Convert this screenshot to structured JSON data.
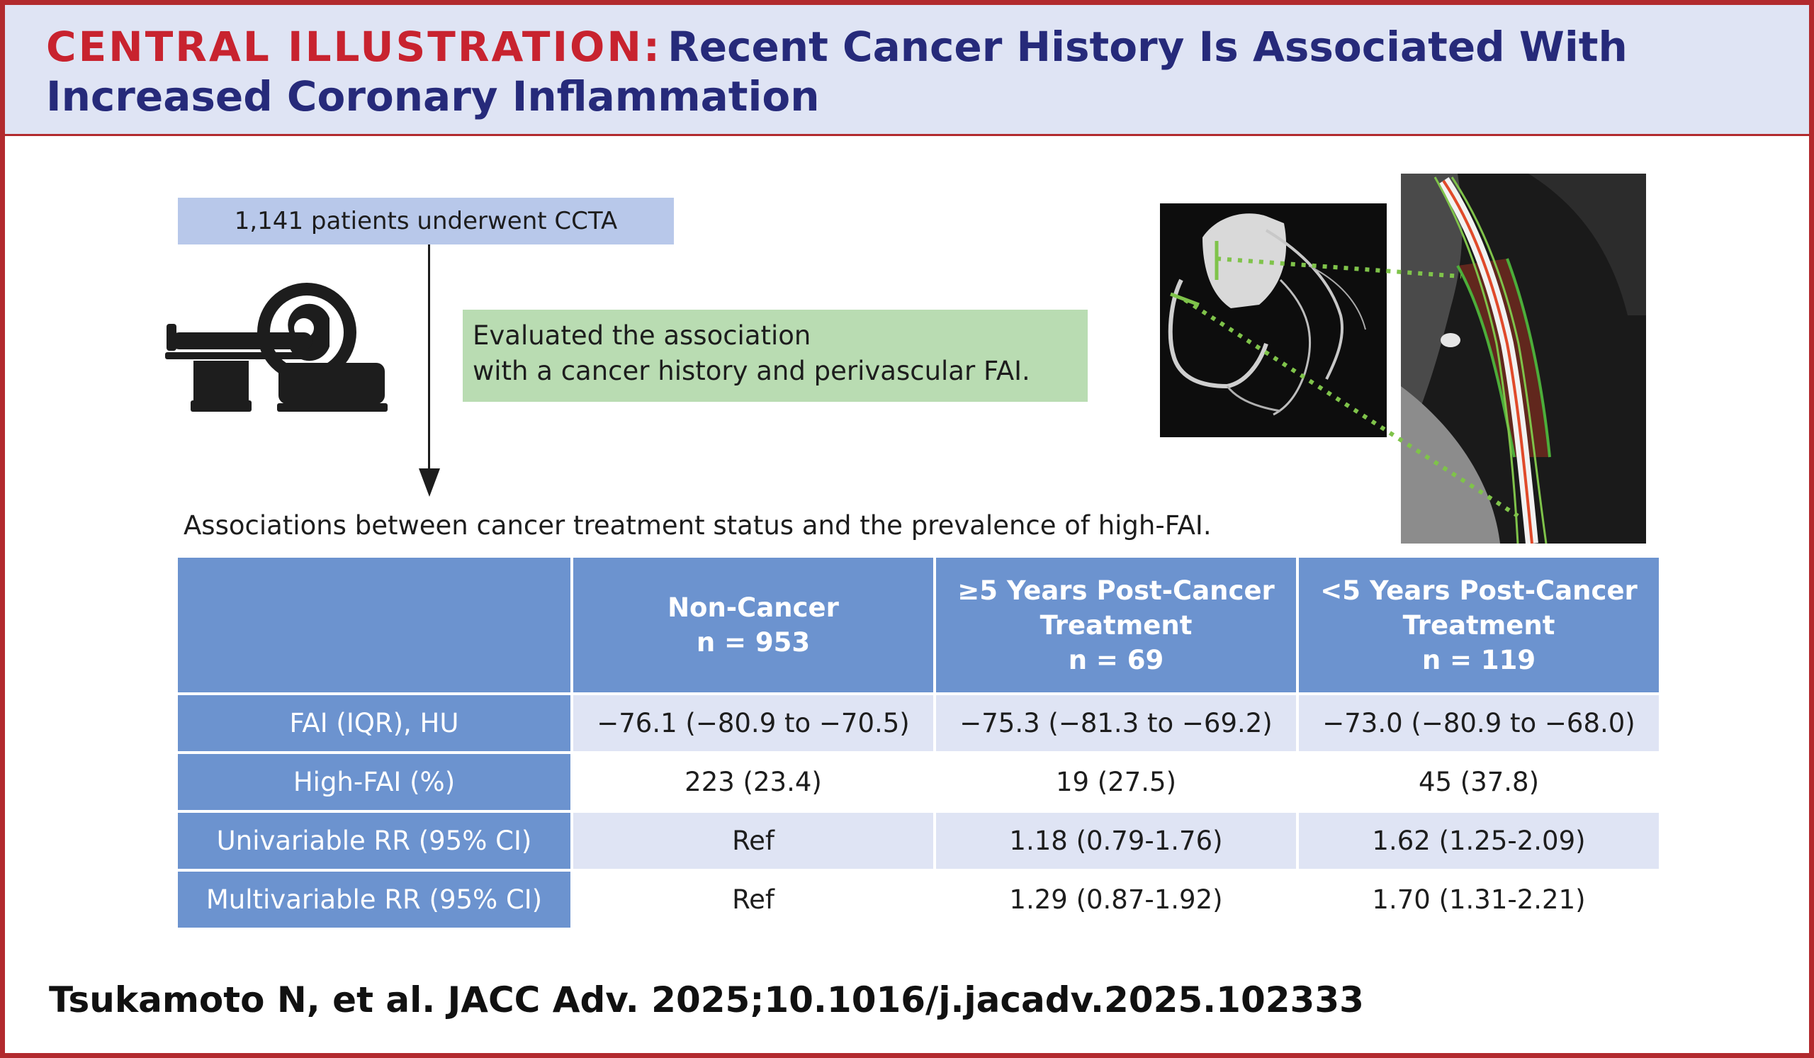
{
  "header": {
    "label": "CENTRAL ILLUSTRATION:",
    "title": "Recent Cancer History Is Associated With Increased Coronary Inflammation"
  },
  "flow": {
    "patients": "1,141 patients underwent CCTA",
    "evaluated_line1": "Evaluated the association",
    "evaluated_line2": "with a cancer history and perivascular FAI.",
    "assoc_heading": "Associations between cancer treatment status and the prevalence of high-FAI."
  },
  "table": {
    "columns": [
      {
        "line1": "Non-Cancer",
        "line2": "",
        "n": "n = 953"
      },
      {
        "line1": "≥5 Years Post-Cancer",
        "line2": "Treatment",
        "n": "n = 69"
      },
      {
        "line1": "<5 Years Post-Cancer",
        "line2": "Treatment",
        "n": "n = 119"
      }
    ],
    "rows": [
      {
        "label": "FAI (IQR), HU",
        "values": [
          "−76.1 (−80.9 to −70.5)",
          "−75.3 (−81.3 to −69.2)",
          "−73.0 (−80.9 to −68.0)"
        ]
      },
      {
        "label": "High-FAI (%)",
        "values": [
          "223 (23.4)",
          "19 (27.5)",
          "45 (37.8)"
        ]
      },
      {
        "label": "Univariable RR (95% CI)",
        "values": [
          "Ref",
          "1.18 (0.79-1.76)",
          "1.62 (1.25-2.09)"
        ]
      },
      {
        "label": "Multivariable RR (95% CI)",
        "values": [
          "Ref",
          "1.29 (0.87-1.92)",
          "1.70 (1.31-2.21)"
        ]
      }
    ]
  },
  "citation": "Tsukamoto N, et al. JACC Adv. 2025;10.1016/j.jacadv.2025.102333",
  "colors": {
    "border": "#b22a2e",
    "header_bg": "#dfe4f4",
    "title_label": "#c8232f",
    "title_text": "#262a7a",
    "table_header": "#6c93cf",
    "patients_box": "#b8c8ea",
    "evaluated_box": "#b9dcb2"
  },
  "icons": {
    "scanner": "ct-scanner-icon",
    "ct_images": "coronary-ct-images"
  }
}
